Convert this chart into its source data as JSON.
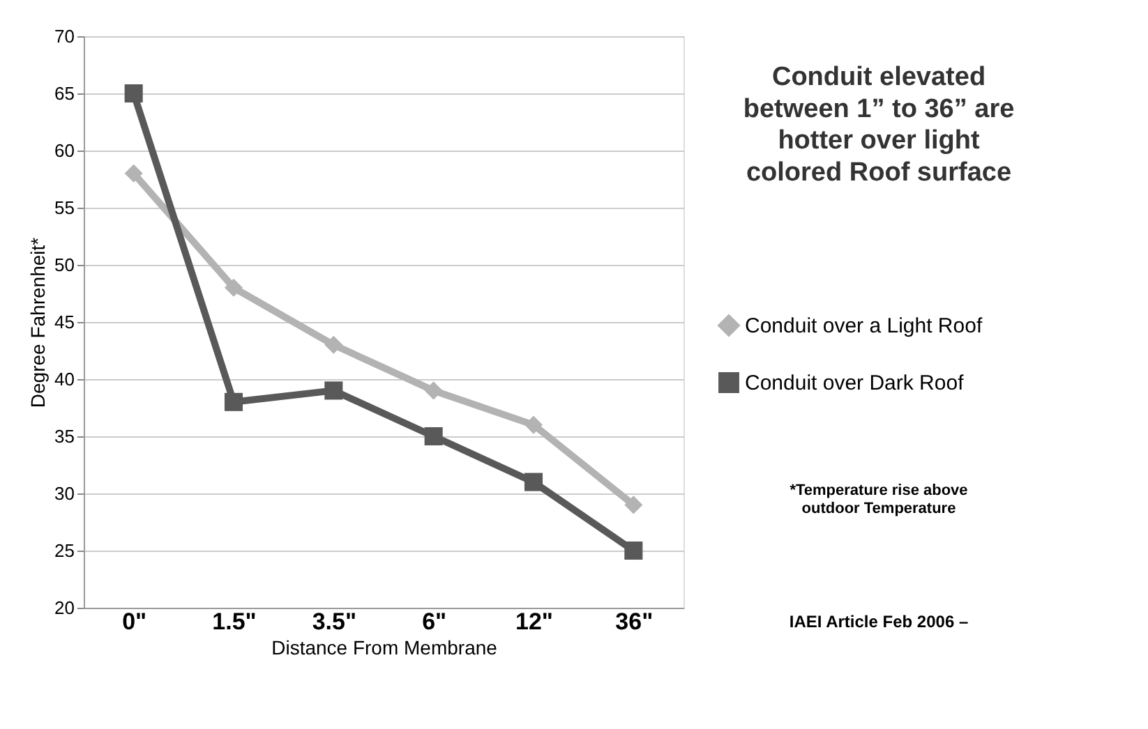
{
  "chart_data": {
    "type": "line",
    "xlabel": "Distance From Membrane",
    "ylabel": "Degree Fahrenheit*",
    "categories": [
      "0\"",
      "1.5\"",
      "3.5\"",
      "6\"",
      "12\"",
      "36\""
    ],
    "series": [
      {
        "name": "Conduit over a Light Roof",
        "color": "#b3b3b3",
        "marker": "diamond",
        "values": [
          58,
          48,
          43,
          39,
          36,
          29
        ]
      },
      {
        "name": "Conduit over Dark Roof",
        "color": "#595959",
        "marker": "square",
        "values": [
          65,
          38,
          39,
          35,
          31,
          25
        ]
      }
    ],
    "ylim": [
      20,
      70
    ],
    "yticks": [
      20,
      25,
      30,
      35,
      40,
      45,
      50,
      55,
      60,
      65,
      70
    ],
    "grid": "y",
    "legend": "right",
    "annotations": [
      "Conduit elevated between 1” to 36” are hotter over light colored Roof surface",
      "*Temperature rise above outdoor Temperature",
      "IAEI Article Feb 2006 –"
    ]
  }
}
